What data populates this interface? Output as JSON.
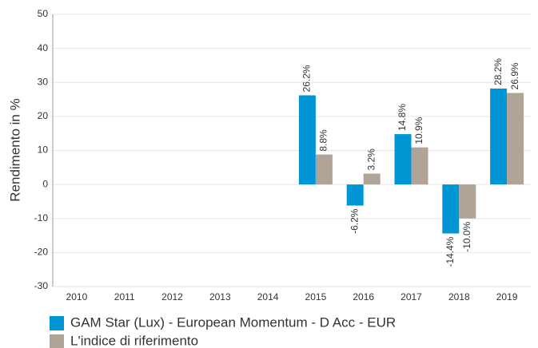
{
  "chart_data": {
    "type": "bar",
    "y_label": "Rendimento in %",
    "categories": [
      "2010",
      "2011",
      "2012",
      "2013",
      "2014",
      "2015",
      "2016",
      "2017",
      "2018",
      "2019"
    ],
    "series": [
      {
        "name": "GAM Star (Lux) - European Momentum - D Acc - EUR",
        "color": "#0096d6",
        "values": [
          null,
          null,
          null,
          null,
          null,
          26.2,
          -6.2,
          14.8,
          -14.4,
          28.2
        ],
        "value_labels": [
          null,
          null,
          null,
          null,
          null,
          "26.2%",
          "-6.2%",
          "14.8%",
          "-14.4%",
          "28.2%"
        ]
      },
      {
        "name": "L'indice di riferimento",
        "color": "#b0a397",
        "values": [
          null,
          null,
          null,
          null,
          null,
          8.8,
          3.2,
          10.9,
          -10.0,
          26.9
        ],
        "value_labels": [
          null,
          null,
          null,
          null,
          null,
          "8.8%",
          "3.2%",
          "10.9%",
          "-10.0%",
          "26.9%"
        ]
      }
    ],
    "ylim": [
      -30,
      50
    ],
    "yticks": [
      -30,
      -20,
      -10,
      0,
      10,
      20,
      30,
      40,
      50
    ],
    "grid": true
  }
}
